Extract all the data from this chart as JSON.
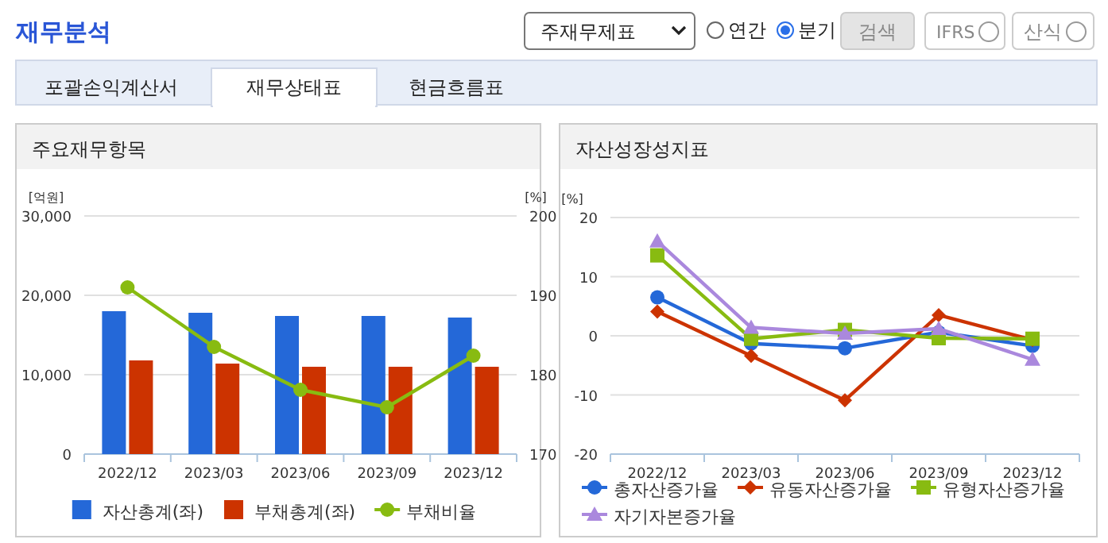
{
  "chart_data": [
    {
      "type": "other",
      "title": "재무분석",
      "annotations": [
        "주재무제표",
        "연간",
        "분기",
        "검색",
        "IFRS",
        "산식",
        "포괄손익계산서",
        "재무상태표",
        "현금흐름표"
      ]
    },
    {
      "type": "bar",
      "title": "주요재무항목",
      "ylabel": "[억원]",
      "y2label": "[%]",
      "categories": [
        "2022/12",
        "2023/03",
        "2023/06",
        "2023/09",
        "2023/12"
      ],
      "ylim": [
        0,
        30000
      ],
      "yticks": [
        0,
        {
          "value": 10000,
          "label": "10,000"
        },
        {
          "value": 20000,
          "label": "20,000"
        },
        {
          "value": 30000,
          "label": "30,000"
        }
      ],
      "y2lim": [
        170,
        200
      ],
      "y2ticks": [
        170,
        180,
        190,
        200
      ],
      "grid": "y",
      "legend": "bottom",
      "series": [
        {
          "name": "자산총계(좌)",
          "color": "#2468d8",
          "values": [
            18000,
            17800,
            17400,
            17400,
            17200
          ]
        },
        {
          "name": "부채총계(좌)",
          "color": "#cc3300",
          "values": [
            11800,
            11400,
            11000,
            11000,
            11000
          ]
        },
        {
          "name": "부채비율",
          "type": "line",
          "axis": "y2",
          "marker": "circle",
          "color": "#88bb11",
          "values": [
            191.0,
            183.5,
            178.1,
            175.9,
            182.4
          ]
        }
      ]
    },
    {
      "type": "line",
      "title": "자산성장성지표",
      "ylabel": "[%]",
      "categories": [
        "2022/12",
        "2023/03",
        "2023/06",
        "2023/09",
        "2023/12"
      ],
      "ylim": [
        -20,
        20
      ],
      "yticks": [
        -20,
        -10,
        0,
        10,
        20
      ],
      "grid": "y",
      "legend": "bottom",
      "series": [
        {
          "name": "총자산증가율",
          "marker": "circle",
          "color": "#2468d8",
          "values": [
            6.5,
            -1.3,
            -2.1,
            0.6,
            -1.7
          ]
        },
        {
          "name": "유동자산증가율",
          "marker": "diamond",
          "color": "#cc3300",
          "values": [
            4.1,
            -3.4,
            -10.9,
            3.5,
            -0.7
          ]
        },
        {
          "name": "유형자산증가율",
          "marker": "square",
          "color": "#88bb11",
          "values": [
            13.6,
            -0.5,
            1.0,
            -0.4,
            -0.5
          ]
        },
        {
          "name": "자기자본증가율",
          "marker": "triangle",
          "color": "#aa88dd",
          "values": [
            16.0,
            1.4,
            0.4,
            1.2,
            -4.0
          ]
        }
      ]
    }
  ]
}
